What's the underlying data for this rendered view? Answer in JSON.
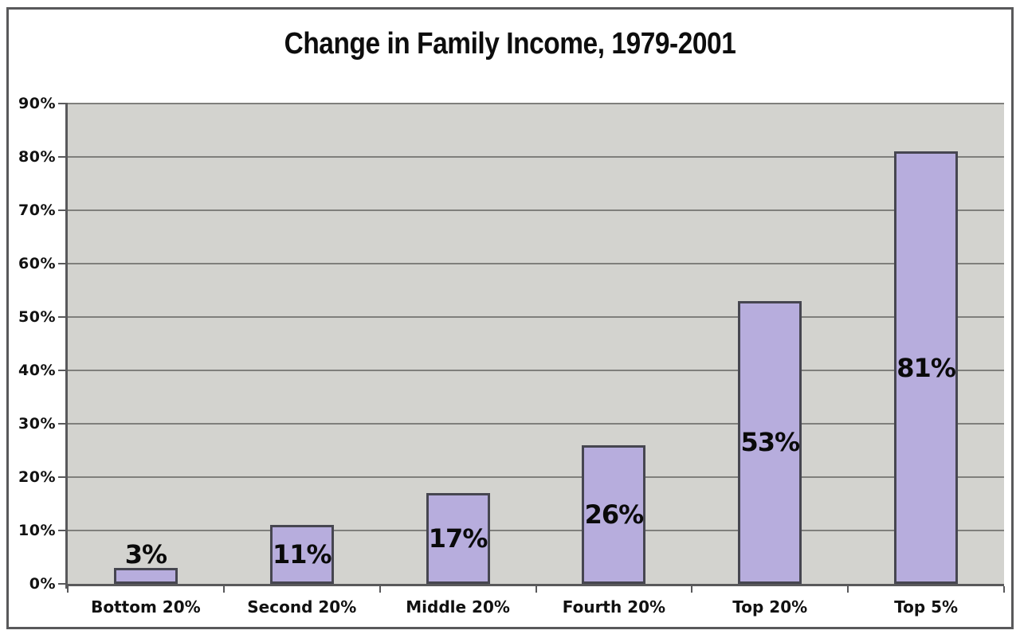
{
  "chart_data": {
    "type": "bar",
    "title": "Change in Family Income, 1979-2001",
    "categories": [
      "Bottom 20%",
      "Second 20%",
      "Middle 20%",
      "Fourth 20%",
      "Top 20%",
      "Top 5%"
    ],
    "values": [
      3,
      11,
      17,
      26,
      53,
      81
    ],
    "value_labels": [
      "3%",
      "11%",
      "17%",
      "26%",
      "53%",
      "81%"
    ],
    "xlabel": "",
    "ylabel": "",
    "ylim": [
      0,
      90
    ],
    "yticks": [
      {
        "value": 0,
        "label": "0%"
      },
      {
        "value": 10,
        "label": "10%"
      },
      {
        "value": 20,
        "label": "20%"
      },
      {
        "value": 30,
        "label": "30%"
      },
      {
        "value": 40,
        "label": "40%"
      },
      {
        "value": 50,
        "label": "50%"
      },
      {
        "value": 60,
        "label": "60%"
      },
      {
        "value": 70,
        "label": "70%"
      },
      {
        "value": 80,
        "label": "80%"
      },
      {
        "value": 90,
        "label": "90%"
      }
    ],
    "grid": true,
    "legend_position": "none",
    "colors": {
      "bar_fill": "#b7addd",
      "bar_border": "#464650",
      "plot_background": "#d3d3cf",
      "gridline": "#7f7f7c",
      "axis": "#59595b",
      "frame_border": "#59595b",
      "text": "#111111",
      "page_background": "#ffffff"
    }
  }
}
